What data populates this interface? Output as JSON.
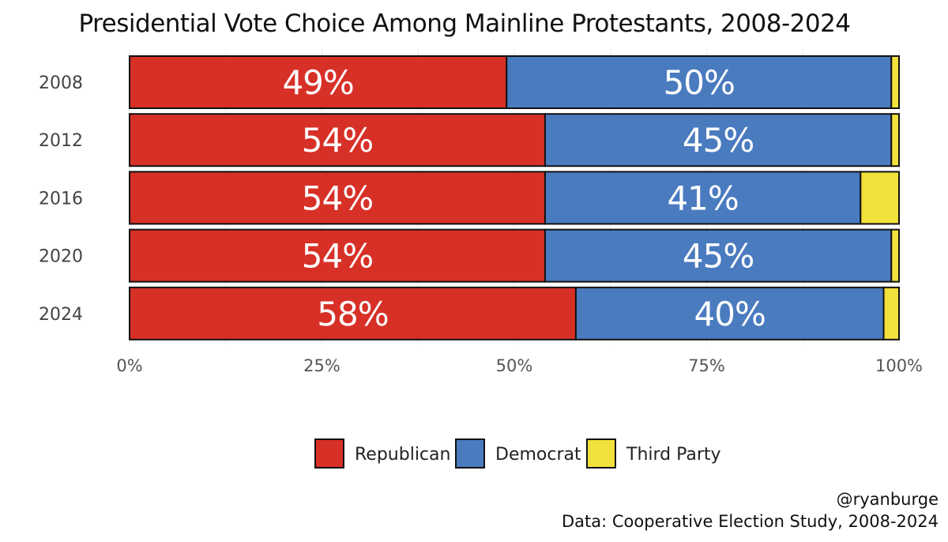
{
  "chart_data": {
    "type": "bar",
    "orientation": "horizontal",
    "stacked": true,
    "title": "Presidential Vote Choice Among Mainline Protestants, 2008-2024",
    "categories": [
      "2008",
      "2012",
      "2016",
      "2020",
      "2024"
    ],
    "series": [
      {
        "name": "Republican",
        "color": "#d73027",
        "values": [
          49,
          54,
          54,
          54,
          58
        ],
        "labels": [
          "49%",
          "54%",
          "54%",
          "54%",
          "58%"
        ]
      },
      {
        "name": "Democrat",
        "color": "#4a7bbf",
        "values": [
          50,
          45,
          41,
          45,
          40
        ],
        "labels": [
          "50%",
          "45%",
          "41%",
          "45%",
          "40%"
        ]
      },
      {
        "name": "Third Party",
        "color": "#f2e03c",
        "values": [
          1,
          1,
          5,
          1,
          2
        ],
        "labels": [
          "",
          "",
          "",
          "",
          ""
        ]
      }
    ],
    "xlim": [
      0,
      100
    ],
    "x_ticks": [
      0,
      25,
      50,
      75,
      100
    ],
    "x_tick_labels": [
      "0%",
      "25%",
      "50%",
      "75%",
      "100%"
    ],
    "grid": true,
    "legend_position": "bottom"
  },
  "footer": {
    "handle": "@ryanburge",
    "source": "Data: Cooperative Election Study, 2008-2024"
  }
}
